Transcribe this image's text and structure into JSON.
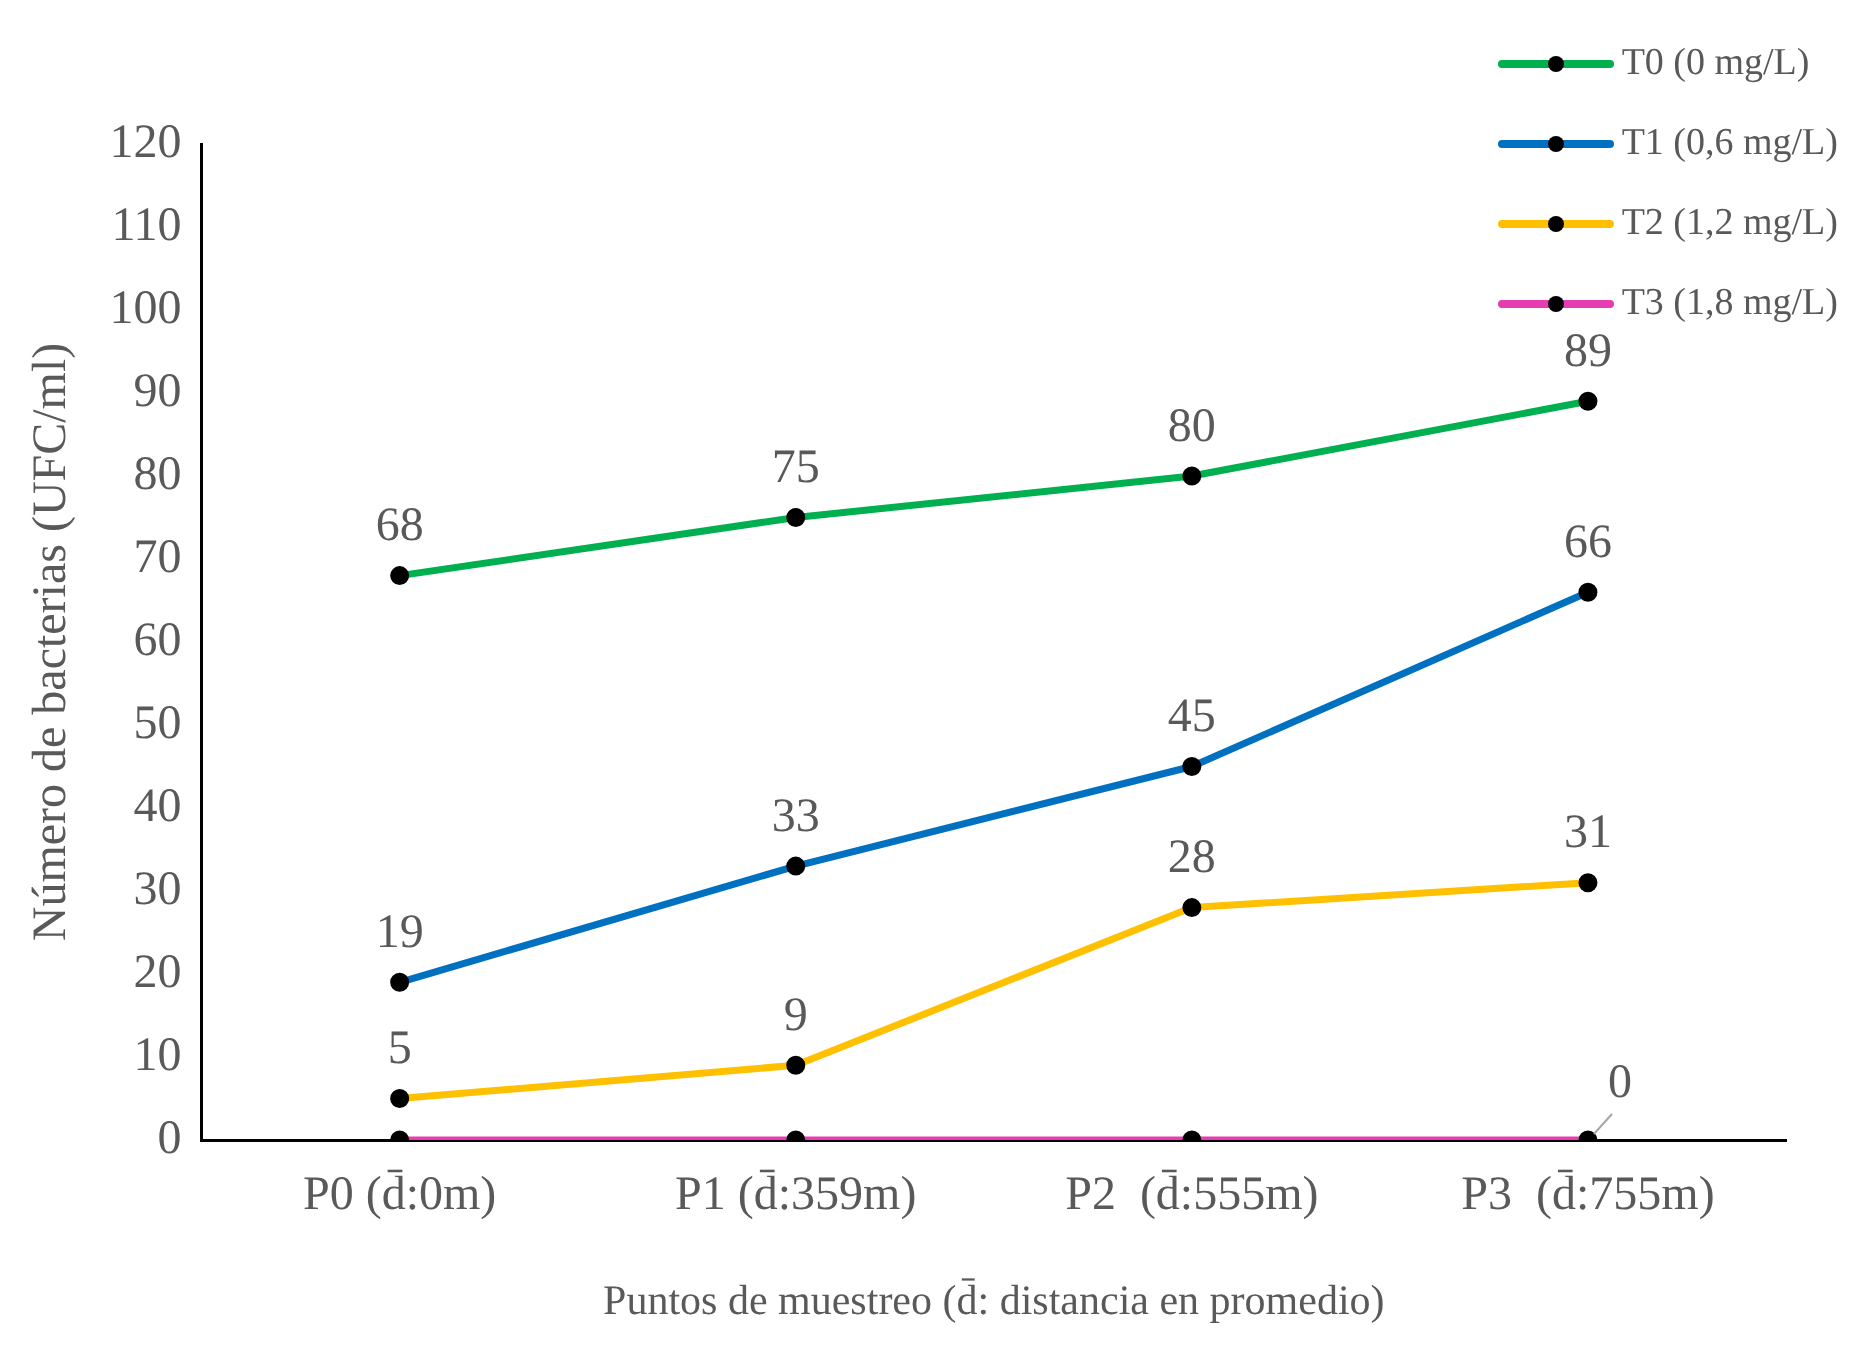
{
  "chart_data": {
    "type": "line",
    "xlabel": "Puntos de muestreo (d̄: distancia en promedio)",
    "ylabel": "Número de bacterias (UFC/ml)",
    "categories": [
      "P0 (d̄:0m)",
      "P1 (d̄:359m)",
      "P2  (d̄:555m)",
      "P3  (d̄:755m)"
    ],
    "series": [
      {
        "name": "T0 (0 mg/L)",
        "color": "#00b050",
        "values": [
          68,
          75,
          80,
          89
        ],
        "value_labels": [
          "68",
          "75",
          "80",
          "89"
        ]
      },
      {
        "name": "T1 (0,6 mg/L)",
        "color": "#0070c0",
        "values": [
          19,
          33,
          45,
          66
        ],
        "value_labels": [
          "19",
          "33",
          "45",
          "66"
        ]
      },
      {
        "name": "T2 (1,2 mg/L)",
        "color": "#ffc000",
        "values": [
          5,
          9,
          28,
          31
        ],
        "value_labels": [
          "5",
          "9",
          "28",
          "31"
        ]
      },
      {
        "name": "T3 (1,8 mg/L)",
        "color": "#e83cb4",
        "values": [
          0,
          0,
          0,
          0
        ],
        "value_labels": [
          null,
          null,
          null,
          "0"
        ]
      }
    ],
    "ylim": [
      0,
      120
    ],
    "yticks": [
      0,
      10,
      20,
      30,
      40,
      50,
      60,
      70,
      80,
      90,
      100,
      110,
      120
    ],
    "grid": false,
    "legend": "top right",
    "marker": "circle",
    "line_style": "solid"
  }
}
